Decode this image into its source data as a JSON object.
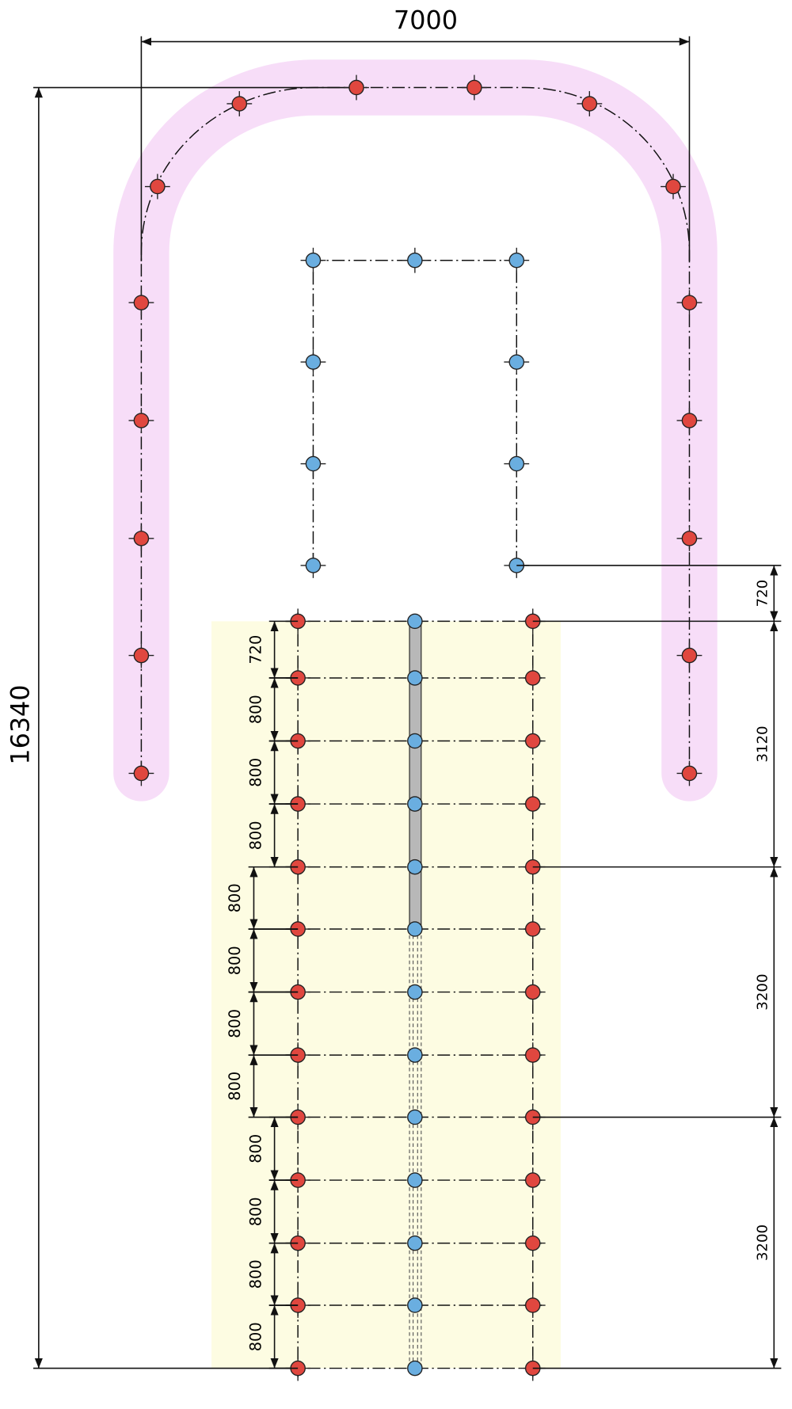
{
  "dimensions": {
    "overall_width": "7000",
    "overall_height": "16340",
    "right": [
      "720",
      "3120",
      "3200",
      "3200"
    ],
    "left": [
      "720",
      "800",
      "800",
      "800",
      "800",
      "800",
      "800",
      "800",
      "800",
      "800",
      "800",
      "800"
    ]
  }
}
